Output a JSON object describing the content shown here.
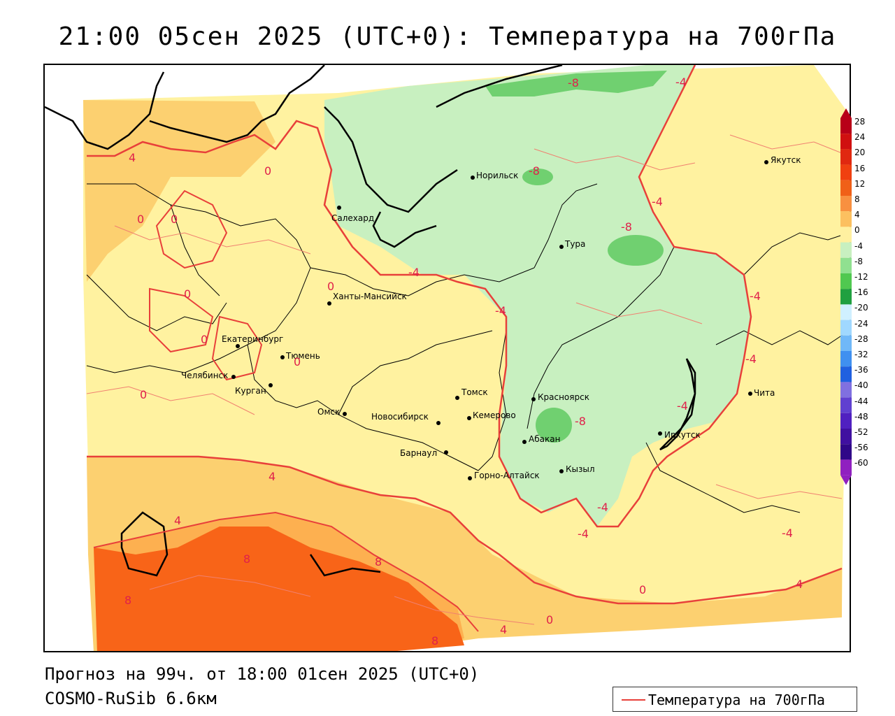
{
  "title": "21:00 05сен 2025 (UTC+0): Температура на 700гПа",
  "footer": {
    "forecast": "Прогноз на 99ч. от 18:00 01сен 2025 (UTC+0)",
    "model": "COSMO-RuSib 6.6км"
  },
  "legend": {
    "label": "Температура на 700гПа",
    "line_color": "#e8403a"
  },
  "colorbar": {
    "ticks": [
      "28",
      "24",
      "20",
      "16",
      "12",
      "8",
      "4",
      "0",
      "-4",
      "-8",
      "-12",
      "-16",
      "-20",
      "-24",
      "-28",
      "-32",
      "-36",
      "-40",
      "-44",
      "-48",
      "-52",
      "-56",
      "-60"
    ],
    "colors": [
      "#b80018",
      "#d01010",
      "#e02810",
      "#f04010",
      "#f06018",
      "#f89040",
      "#fcc060",
      "#fff0a0",
      "#c8f0c0",
      "#90e090",
      "#50c850",
      "#20a040",
      "#d0f0ff",
      "#a0d8ff",
      "#70b8f8",
      "#4090f0",
      "#2060e0",
      "#8070e0",
      "#6040d0",
      "#5020c0",
      "#4010a0",
      "#300888",
      "#9020c0"
    ]
  },
  "cities": [
    {
      "name": "Якутск"
    },
    {
      "name": "Норильск"
    },
    {
      "name": "Салехард"
    },
    {
      "name": "Тура"
    },
    {
      "name": "Ханты-Мансийск"
    },
    {
      "name": "Екатеринбург"
    },
    {
      "name": "Тюмень"
    },
    {
      "name": "Челябинск"
    },
    {
      "name": "Курган"
    },
    {
      "name": "Омск"
    },
    {
      "name": "Новосибирск"
    },
    {
      "name": "Томск"
    },
    {
      "name": "Кемерово"
    },
    {
      "name": "Красноярск"
    },
    {
      "name": "Абакан"
    },
    {
      "name": "Барнаул"
    },
    {
      "name": "Горно-Алтайск"
    },
    {
      "name": "Кызыл"
    },
    {
      "name": "Иркутск"
    },
    {
      "name": "Чита"
    }
  ],
  "contour_labels": [
    "4",
    "0",
    "0",
    "0",
    "0",
    "0",
    "0",
    "0",
    "-4",
    "-4",
    "-8",
    "-8",
    "-4",
    "-8",
    "-4",
    "-4",
    "-4",
    "-8",
    "-4",
    "0",
    "4",
    "4",
    "8",
    "8",
    "8",
    "8",
    "4",
    "0",
    "0",
    "4",
    "-4",
    "-4",
    "-4"
  ]
}
